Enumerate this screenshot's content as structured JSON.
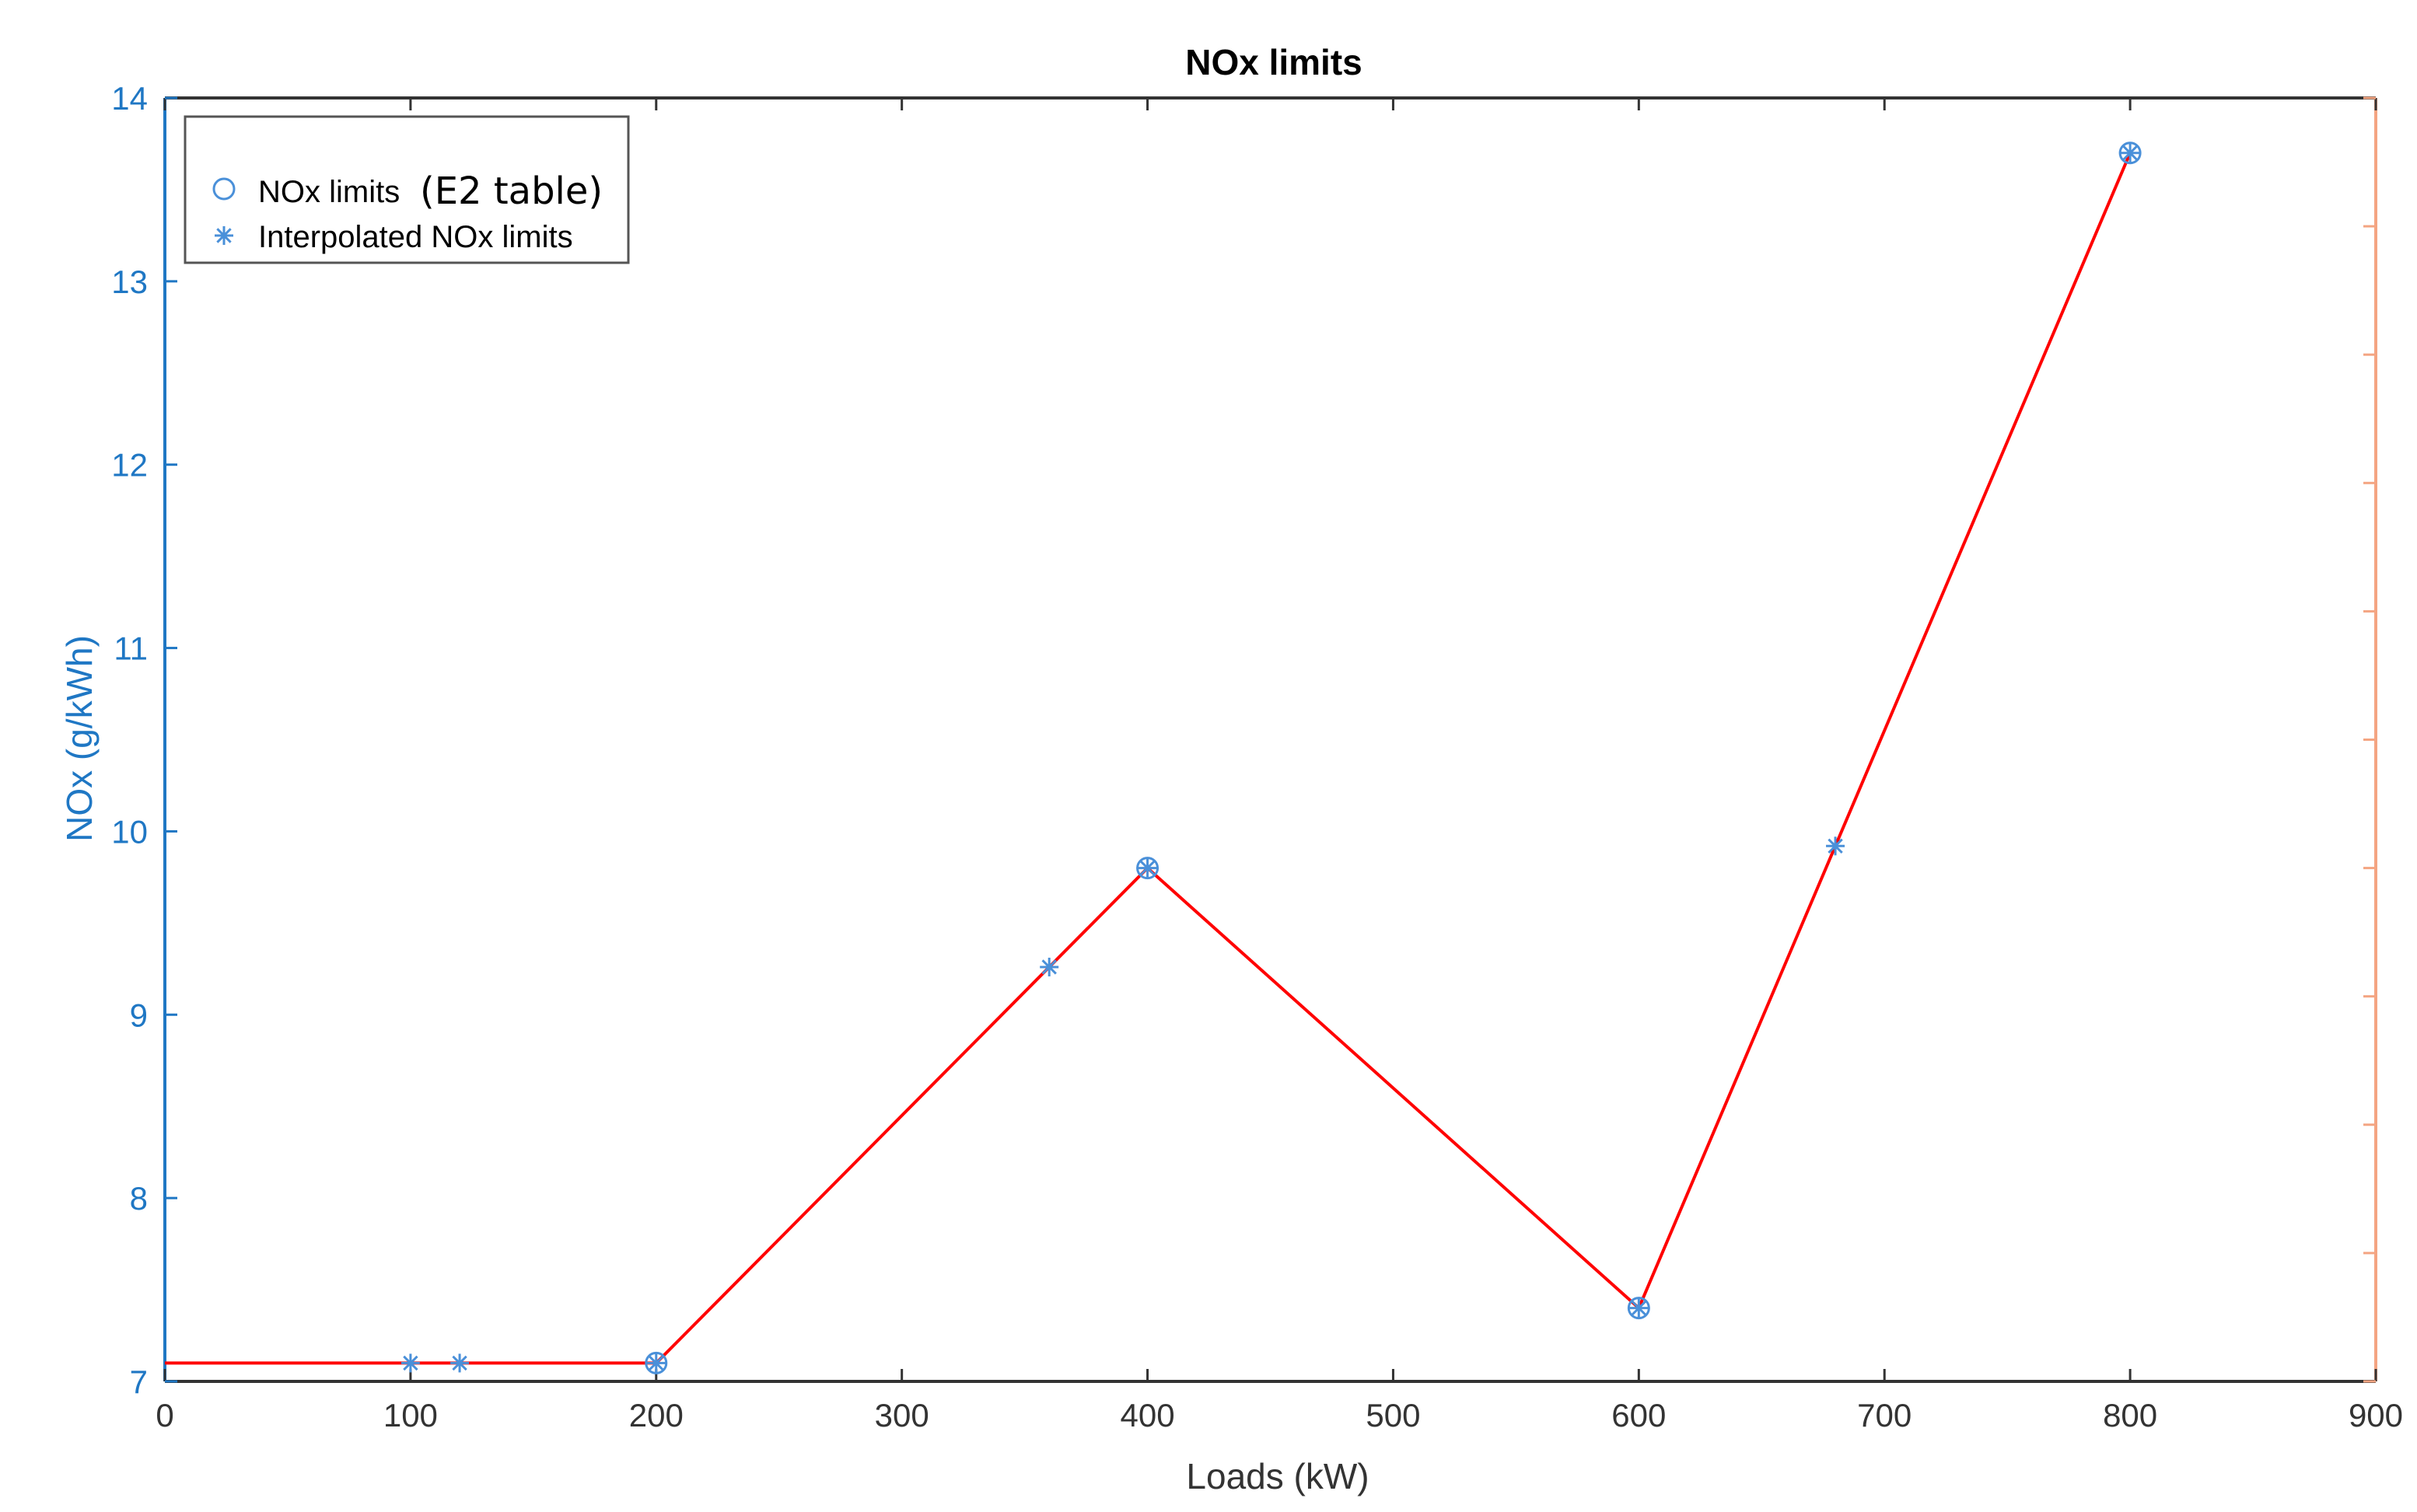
{
  "chart_data": {
    "type": "line",
    "title": "NOx limits",
    "xlabel": "Loads (kW)",
    "ylabel": "NOx (g/kWh)",
    "xlim": [
      0,
      900
    ],
    "ylim": [
      7,
      14
    ],
    "xticks": [
      "0",
      "100",
      "200",
      "300",
      "400",
      "500",
      "600",
      "700",
      "800",
      "900"
    ],
    "yticks": [
      "7",
      "8",
      "9",
      "10",
      "11",
      "12",
      "13",
      "14"
    ],
    "grid": false,
    "legend_position": "top-left",
    "right_axis": {
      "color": "#f4a582",
      "tick_labels_shown": false
    },
    "series": [
      {
        "name": "NOx limits (E2 table)",
        "legend_main": "NOx limits",
        "legend_suffix": "(E2 table)",
        "marker": "circle",
        "color": "#4a90d9",
        "x": [
          200,
          400,
          600,
          800
        ],
        "y": [
          7.1,
          9.8,
          7.4,
          13.7
        ]
      },
      {
        "name": "Interpolated NOx limits",
        "marker": "asterisk",
        "color": "#4a90d9",
        "x": [
          100,
          120,
          200,
          360,
          400,
          600,
          680,
          800
        ],
        "y": [
          7.1,
          7.1,
          7.1,
          9.26,
          9.8,
          7.4,
          9.92,
          13.7
        ]
      },
      {
        "name": "",
        "marker": "none",
        "line": "solid",
        "color": "#ff0000",
        "x": [
          0,
          200,
          400,
          600,
          800
        ],
        "y": [
          7.1,
          7.1,
          9.8,
          7.4,
          13.7
        ]
      }
    ]
  },
  "colors": {
    "left_axis": "#1f77c4",
    "bottom_axis": "#333333",
    "right_axis": "#f4a582",
    "marker": "#4a90d9",
    "line": "#ff0000"
  }
}
